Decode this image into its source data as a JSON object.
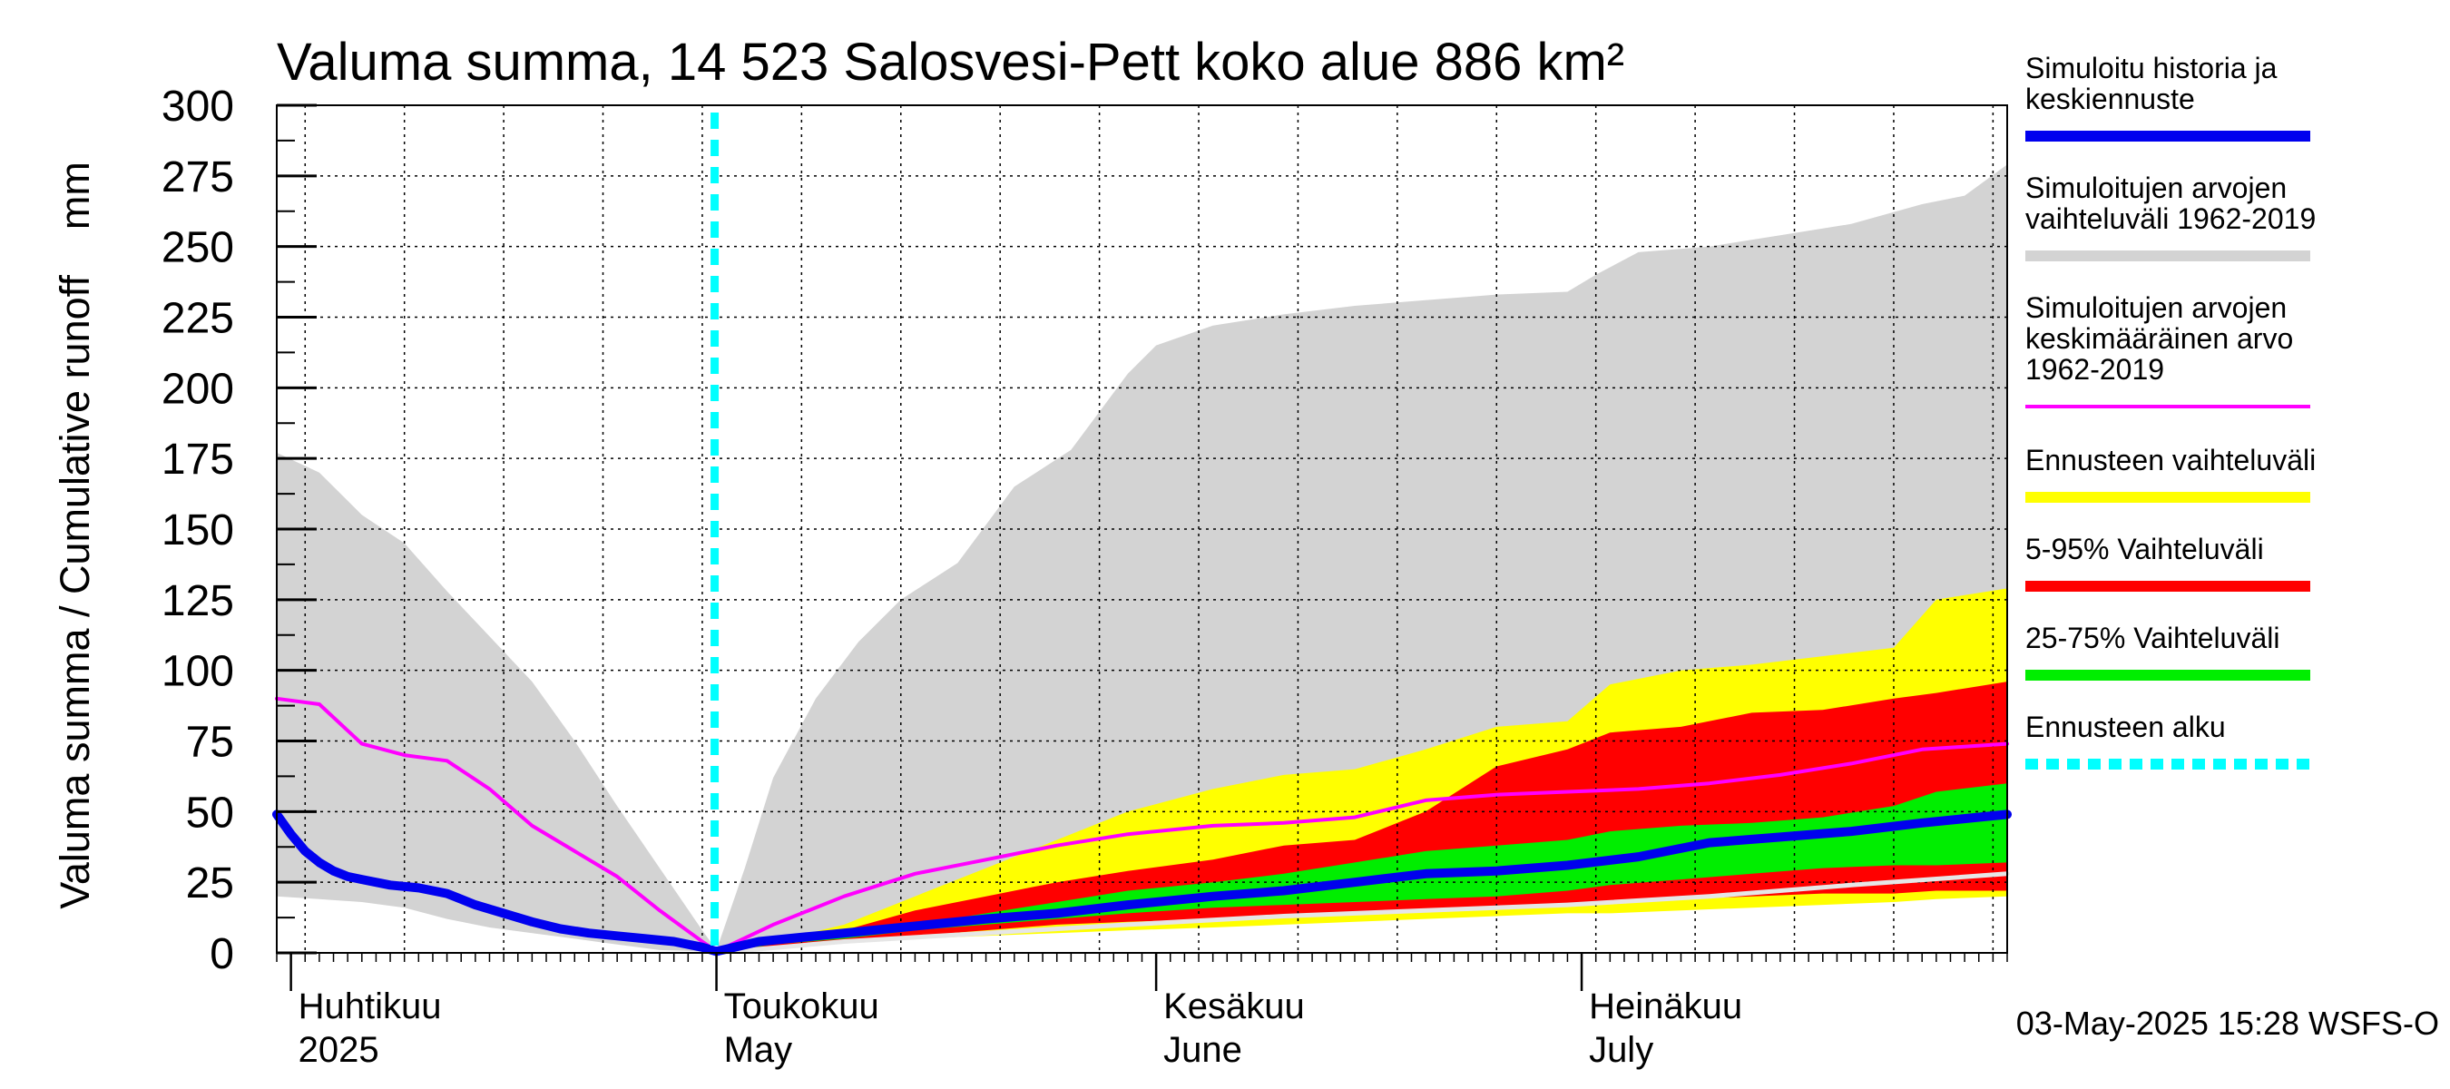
{
  "chart_data": {
    "type": "area",
    "title": "Valuma summa, 14 523 Salosvesi-Pett koko alue 886 km²",
    "ylabel": "Valuma summa / Cumulative runoff    mm",
    "ylim": [
      0,
      300
    ],
    "yticks": [
      0,
      25,
      50,
      75,
      100,
      125,
      150,
      175,
      200,
      225,
      250,
      275,
      300
    ],
    "ytick_labels": [
      "0",
      "25",
      "50",
      "75",
      "100",
      "125",
      "150",
      "175",
      "200",
      "225",
      "250",
      "275",
      "300"
    ],
    "x_start": "2025-03-31",
    "x_end": "2025-07-31",
    "forecast_start": "2025-05-01",
    "month_labels": [
      {
        "date": "2025-04-01",
        "fi": "Huhtikuu",
        "en": "2025"
      },
      {
        "date": "2025-05-01",
        "fi": "Toukokuu",
        "en": "May"
      },
      {
        "date": "2025-06-01",
        "fi": "Kesäkuu",
        "en": "June"
      },
      {
        "date": "2025-07-01",
        "fi": "Heinäkuu",
        "en": "July"
      }
    ],
    "timestamp": "03-May-2025 15:28 WSFS-O",
    "grid": true,
    "legend": [
      {
        "name": "Simuloitu historia ja keskiennuste",
        "lines": [
          "Simuloitu historia ja",
          "keskiennuste"
        ],
        "color": "#0000ee",
        "style": "thick"
      },
      {
        "name": "Simuloitujen arvojen vaihteluväli 1962-2019",
        "lines": [
          "Simuloitujen arvojen",
          "vaihteluväli 1962-2019"
        ],
        "color": "#d3d3d3",
        "style": "thick"
      },
      {
        "name": "Simuloitujen arvojen keskimääräinen arvo 1962-2019",
        "lines": [
          "Simuloitujen arvojen",
          "keskimääräinen arvo",
          "   1962-2019"
        ],
        "color": "#ff00ff",
        "style": "thin"
      },
      {
        "name": "Ennusteen vaihteluväli",
        "lines": [
          "Ennusteen vaihteluväli"
        ],
        "color": "#ffff00",
        "style": "thick"
      },
      {
        "name": "5-95% Vaihteluväli",
        "lines": [
          "5-95% Vaihteluväli"
        ],
        "color": "#ff0000",
        "style": "thick"
      },
      {
        "name": "25-75% Vaihteluväli",
        "lines": [
          "25-75% Vaihteluväli"
        ],
        "color": "#00ee00",
        "style": "thick"
      },
      {
        "name": "Ennusteen alku",
        "lines": [
          "Ennusteen alku"
        ],
        "color": "#00ffff",
        "style": "dashed"
      }
    ],
    "series": [
      {
        "name": "Simuloitujen arvojen vaihteluväli 1962-2019",
        "kind": "band",
        "color": "#d3d3d3",
        "x": [
          "2025-03-31",
          "2025-04-03",
          "2025-04-06",
          "2025-04-09",
          "2025-04-12",
          "2025-04-15",
          "2025-04-18",
          "2025-04-21",
          "2025-04-24",
          "2025-04-27",
          "2025-04-30",
          "2025-05-01",
          "2025-05-03",
          "2025-05-05",
          "2025-05-08",
          "2025-05-11",
          "2025-05-14",
          "2025-05-18",
          "2025-05-22",
          "2025-05-26",
          "2025-05-30",
          "2025-06-01",
          "2025-06-05",
          "2025-06-10",
          "2025-06-15",
          "2025-06-20",
          "2025-06-25",
          "2025-06-30",
          "2025-07-02",
          "2025-07-05",
          "2025-07-10",
          "2025-07-15",
          "2025-07-20",
          "2025-07-25",
          "2025-07-28",
          "2025-07-31"
        ],
        "lower": [
          20,
          19,
          18,
          16,
          12,
          9,
          7,
          5,
          3,
          1,
          0.5,
          0,
          1,
          2,
          3,
          5,
          6,
          7,
          7.5,
          8,
          9,
          10,
          11,
          12,
          13,
          14,
          15,
          16,
          17,
          18,
          19,
          20,
          21,
          22,
          23,
          24
        ],
        "upper": [
          177,
          170,
          155,
          145,
          128,
          112,
          96,
          75,
          52,
          30,
          8,
          1,
          30,
          62,
          90,
          110,
          125,
          138,
          165,
          178,
          205,
          215,
          222,
          226,
          229,
          231,
          233,
          234,
          240,
          248,
          250,
          254,
          258,
          265,
          268,
          279
        ]
      },
      {
        "name": "Ennusteen vaihteluväli",
        "kind": "band",
        "color": "#ffff00",
        "x": [
          "2025-05-01",
          "2025-05-05",
          "2025-05-10",
          "2025-05-15",
          "2025-05-20",
          "2025-05-25",
          "2025-05-30",
          "2025-06-05",
          "2025-06-10",
          "2025-06-15",
          "2025-06-20",
          "2025-06-25",
          "2025-06-30",
          "2025-07-03",
          "2025-07-08",
          "2025-07-13",
          "2025-07-18",
          "2025-07-23",
          "2025-07-26",
          "2025-07-31"
        ],
        "lower": [
          0,
          2,
          4,
          5,
          6,
          7,
          8,
          9,
          10,
          11,
          12,
          13,
          14,
          14,
          15,
          16,
          17,
          18,
          19,
          20
        ],
        "upper": [
          0,
          4,
          10,
          20,
          30,
          40,
          50,
          58,
          63,
          65,
          72,
          80,
          82,
          95,
          100,
          102,
          105,
          108,
          125,
          129
        ]
      },
      {
        "name": "5-95% Vaihteluväli",
        "kind": "band",
        "color": "#ff0000",
        "x": [
          "2025-05-01",
          "2025-05-05",
          "2025-05-10",
          "2025-05-15",
          "2025-05-20",
          "2025-05-25",
          "2025-05-30",
          "2025-06-05",
          "2025-06-10",
          "2025-06-15",
          "2025-06-20",
          "2025-06-25",
          "2025-06-30",
          "2025-07-03",
          "2025-07-08",
          "2025-07-13",
          "2025-07-18",
          "2025-07-23",
          "2025-07-26",
          "2025-07-31"
        ],
        "lower": [
          0,
          2,
          4,
          6,
          8,
          10,
          11,
          12,
          13,
          14,
          15,
          16,
          17,
          18,
          19,
          20,
          21,
          21,
          22,
          22
        ],
        "upper": [
          0,
          4,
          8,
          15,
          20,
          25,
          29,
          33,
          38,
          40,
          50,
          66,
          72,
          78,
          80,
          85,
          86,
          90,
          92,
          96
        ]
      },
      {
        "name": "25-75% Vaihteluväli",
        "kind": "band",
        "color": "#00ee00",
        "x": [
          "2025-05-01",
          "2025-05-05",
          "2025-05-10",
          "2025-05-15",
          "2025-05-20",
          "2025-05-25",
          "2025-05-30",
          "2025-06-05",
          "2025-06-10",
          "2025-06-15",
          "2025-06-20",
          "2025-06-25",
          "2025-06-30",
          "2025-07-03",
          "2025-07-08",
          "2025-07-13",
          "2025-07-18",
          "2025-07-23",
          "2025-07-26",
          "2025-07-31"
        ],
        "lower": [
          0,
          3,
          5,
          8,
          10,
          12,
          14,
          16,
          17,
          18,
          19,
          20,
          22,
          24,
          26,
          28,
          30,
          31,
          31,
          32
        ],
        "upper": [
          0,
          4,
          7,
          10,
          14,
          18,
          22,
          25,
          28,
          32,
          36,
          38,
          40,
          43,
          45,
          46,
          48,
          52,
          57,
          60
        ]
      },
      {
        "name": "Simuloitu historia ja keskiennuste",
        "kind": "line",
        "color": "#0000ee",
        "x": [
          "2025-03-31",
          "2025-04-01",
          "2025-04-02",
          "2025-04-03",
          "2025-04-04",
          "2025-04-05",
          "2025-04-06",
          "2025-04-08",
          "2025-04-10",
          "2025-04-12",
          "2025-04-14",
          "2025-04-16",
          "2025-04-18",
          "2025-04-20",
          "2025-04-22",
          "2025-04-24",
          "2025-04-26",
          "2025-04-28",
          "2025-04-30",
          "2025-05-01",
          "2025-05-04",
          "2025-05-08",
          "2025-05-12",
          "2025-05-16",
          "2025-05-20",
          "2025-05-25",
          "2025-05-30",
          "2025-06-05",
          "2025-06-10",
          "2025-06-15",
          "2025-06-20",
          "2025-06-25",
          "2025-06-30",
          "2025-07-05",
          "2025-07-10",
          "2025-07-15",
          "2025-07-20",
          "2025-07-25",
          "2025-07-31"
        ],
        "values": [
          49,
          42,
          36,
          32,
          29,
          27,
          26,
          24,
          23,
          21,
          17,
          14,
          11,
          8.5,
          7,
          6,
          5,
          4,
          2,
          0.5,
          4,
          6,
          8,
          10,
          12,
          14,
          17,
          20,
          22,
          25,
          28,
          29,
          31,
          34,
          39,
          41,
          43,
          46,
          49
        ]
      },
      {
        "name": "Simuloitujen arvojen keskimääräinen arvo 1962-2019",
        "kind": "line",
        "color": "#ff00ff",
        "x": [
          "2025-03-31",
          "2025-04-03",
          "2025-04-06",
          "2025-04-09",
          "2025-04-12",
          "2025-04-15",
          "2025-04-18",
          "2025-04-21",
          "2025-04-24",
          "2025-04-27",
          "2025-04-30",
          "2025-05-01",
          "2025-05-05",
          "2025-05-10",
          "2025-05-15",
          "2025-05-20",
          "2025-05-25",
          "2025-05-30",
          "2025-06-05",
          "2025-06-10",
          "2025-06-15",
          "2025-06-20",
          "2025-06-25",
          "2025-06-30",
          "2025-07-05",
          "2025-07-10",
          "2025-07-15",
          "2025-07-20",
          "2025-07-25",
          "2025-07-31"
        ],
        "values": [
          90,
          88,
          74,
          70,
          68,
          58,
          45,
          36,
          27,
          15,
          4,
          0.5,
          10,
          20,
          28,
          33,
          38,
          42,
          45,
          46,
          48,
          54,
          56,
          57,
          58,
          60,
          63,
          67,
          72,
          74
        ]
      },
      {
        "name": "Ennusteen alaraja (harmaa viiva)",
        "kind": "line",
        "color": "#e6e6e6",
        "x": [
          "2025-05-01",
          "2025-05-10",
          "2025-05-20",
          "2025-05-30",
          "2025-06-10",
          "2025-06-20",
          "2025-06-30",
          "2025-07-10",
          "2025-07-20",
          "2025-07-31"
        ],
        "values": [
          0,
          4,
          7,
          10,
          13,
          15,
          17,
          20,
          24,
          28
        ]
      }
    ]
  }
}
